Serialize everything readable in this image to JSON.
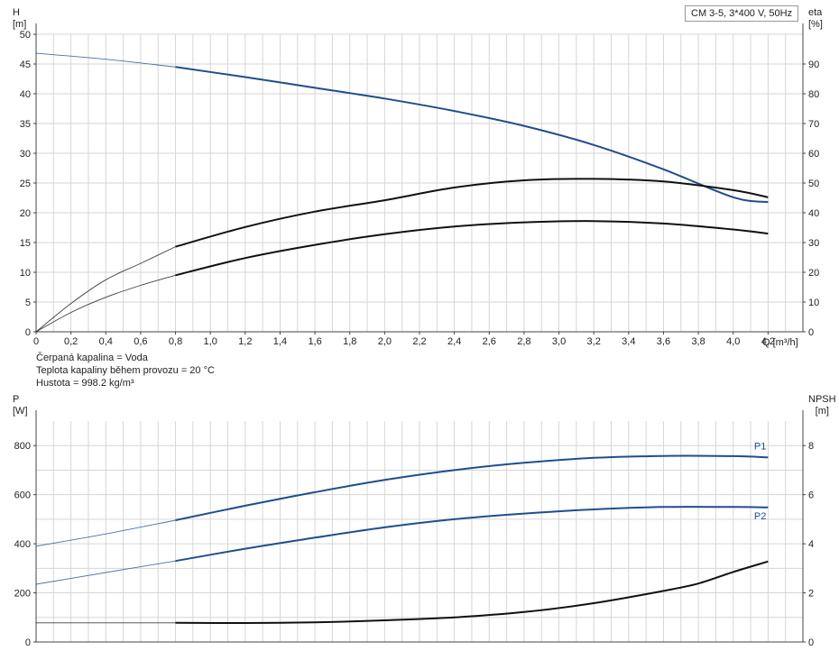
{
  "legend_text": "CM 3-5, 3*400 V, 50Hz",
  "notes": [
    "Čerpaná kapalina = Voda",
    "Teplota kapaliny během provozu = 20 °C",
    "Hustota = 998.2 kg/m³"
  ],
  "colors": {
    "blue": "#1f4e8c",
    "black": "#111111",
    "grid": "#d6d6d6",
    "axis": "#444444"
  },
  "chart_data": [
    {
      "type": "line",
      "x_label": "Q [m³/h]",
      "x_ticks": [
        0,
        0.2,
        0.4,
        0.6,
        0.8,
        1.0,
        1.2,
        1.4,
        1.6,
        1.8,
        2.0,
        2.2,
        2.4,
        2.6,
        2.8,
        3.0,
        3.2,
        3.4,
        3.6,
        3.8,
        4.0,
        4.2
      ],
      "x_tick_labels": [
        "0",
        "0,2",
        "0,4",
        "0,6",
        "0,8",
        "1,0",
        "1,2",
        "1,4",
        "1,6",
        "1,8",
        "2,0",
        "2,2",
        "2,4",
        "2,6",
        "2,8",
        "3,0",
        "3,2",
        "3,4",
        "3,6",
        "3,8",
        "4,0",
        "4,2"
      ],
      "xlim": [
        0,
        4.4
      ],
      "y_left": {
        "label": "H",
        "unit": "[m]",
        "lim": [
          0,
          50
        ],
        "ticks": [
          0,
          5,
          10,
          15,
          20,
          25,
          30,
          35,
          40,
          45,
          50
        ]
      },
      "y_right": {
        "label": "eta",
        "unit": "[%]",
        "lim": [
          0,
          100
        ],
        "ticks": [
          0,
          10,
          20,
          30,
          40,
          50,
          60,
          70,
          80,
          90
        ]
      },
      "series": [
        {
          "axis": "left",
          "color": "blue",
          "x": [
            0,
            0.4,
            0.8,
            1.2,
            1.6,
            2.0,
            2.4,
            2.8,
            3.2,
            3.6,
            4.0,
            4.2
          ],
          "values": [
            46.8,
            45.8,
            44.5,
            42.8,
            41.0,
            39.2,
            37.1,
            34.6,
            31.4,
            27.3,
            22.6,
            21.8
          ]
        },
        {
          "axis": "right",
          "color": "black",
          "x": [
            0,
            0.2,
            0.4,
            0.6,
            0.8,
            1.2,
            1.6,
            2.0,
            2.4,
            2.8,
            3.2,
            3.6,
            4.0,
            4.2
          ],
          "values": [
            0,
            9.5,
            17.5,
            23.0,
            28.6,
            35.2,
            40.4,
            44.2,
            48.5,
            50.9,
            51.4,
            50.5,
            47.6,
            45.2
          ]
        },
        {
          "axis": "right",
          "color": "black",
          "x": [
            0,
            0.2,
            0.4,
            0.6,
            0.8,
            1.2,
            1.6,
            2.0,
            2.4,
            2.8,
            3.2,
            3.6,
            4.0,
            4.2
          ],
          "values": [
            0,
            6.5,
            11.6,
            15.6,
            19.0,
            24.8,
            29.2,
            32.8,
            35.4,
            36.8,
            37.2,
            36.4,
            34.4,
            33.0
          ]
        }
      ]
    },
    {
      "type": "line",
      "x_ticks": [
        0,
        0.2,
        0.4,
        0.6,
        0.8,
        1.0,
        1.2,
        1.4,
        1.6,
        1.8,
        2.0,
        2.2,
        2.4,
        2.6,
        2.8,
        3.0,
        3.2,
        3.4,
        3.6,
        3.8,
        4.0,
        4.2
      ],
      "xlim": [
        0,
        4.4
      ],
      "y_left": {
        "label": "P",
        "unit": "[W]",
        "lim": [
          0,
          900
        ],
        "ticks": [
          0,
          200,
          400,
          600,
          800
        ]
      },
      "y_right": {
        "label": "NPSH",
        "unit": "[m]",
        "lim": [
          0,
          9
        ],
        "ticks": [
          0,
          2,
          4,
          6,
          8
        ]
      },
      "series": [
        {
          "name": "P1",
          "axis": "left",
          "color": "blue",
          "x": [
            0,
            0.4,
            0.8,
            1.2,
            1.6,
            2.0,
            2.4,
            2.8,
            3.2,
            3.6,
            4.0,
            4.2
          ],
          "values": [
            390,
            440,
            496,
            555,
            610,
            660,
            700,
            730,
            750,
            758,
            757,
            752
          ]
        },
        {
          "name": "P2",
          "axis": "left",
          "color": "blue",
          "x": [
            0,
            0.4,
            0.8,
            1.2,
            1.6,
            2.0,
            2.4,
            2.8,
            3.2,
            3.6,
            4.0,
            4.2
          ],
          "values": [
            235,
            283,
            330,
            380,
            425,
            467,
            500,
            523,
            540,
            550,
            550,
            548
          ]
        },
        {
          "axis": "right",
          "color": "black",
          "x": [
            0,
            0.4,
            0.8,
            1.2,
            1.6,
            2.0,
            2.4,
            2.8,
            3.2,
            3.6,
            3.8,
            4.0,
            4.2
          ],
          "values": [
            0.78,
            0.78,
            0.78,
            0.77,
            0.8,
            0.88,
            1.0,
            1.22,
            1.58,
            2.08,
            2.38,
            2.85,
            3.28
          ]
        }
      ]
    }
  ]
}
